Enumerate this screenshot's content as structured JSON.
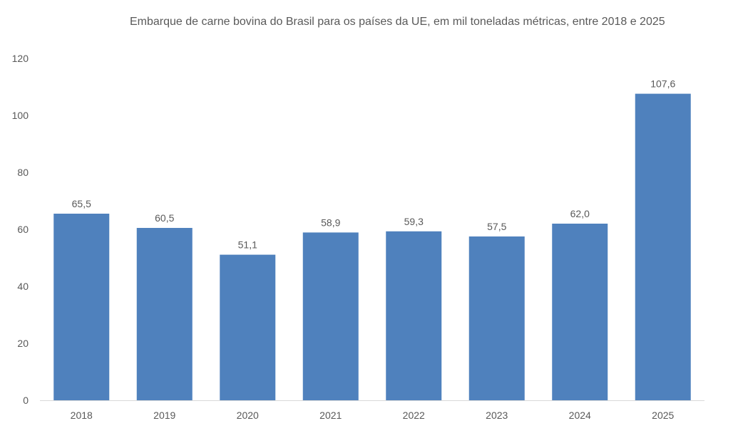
{
  "chart_data": {
    "type": "bar",
    "title": "Embarque de carne bovina do Brasil para os países da UE, em mil toneladas métricas, entre 2018 e 2025",
    "categories": [
      "2018",
      "2019",
      "2020",
      "2021",
      "2022",
      "2023",
      "2024",
      "2025"
    ],
    "values": [
      65.5,
      60.5,
      51.1,
      58.9,
      59.3,
      57.5,
      62.0,
      107.6
    ],
    "data_labels": [
      "65,5",
      "60,5",
      "51,1",
      "58,9",
      "59,3",
      "57,5",
      "62,0",
      "107,6"
    ],
    "xlabel": "",
    "ylabel": "",
    "ylim": [
      0,
      120
    ],
    "yticks": [
      0,
      20,
      40,
      60,
      80,
      100,
      120
    ],
    "grid": false,
    "bar_color": "#4f81bd"
  }
}
